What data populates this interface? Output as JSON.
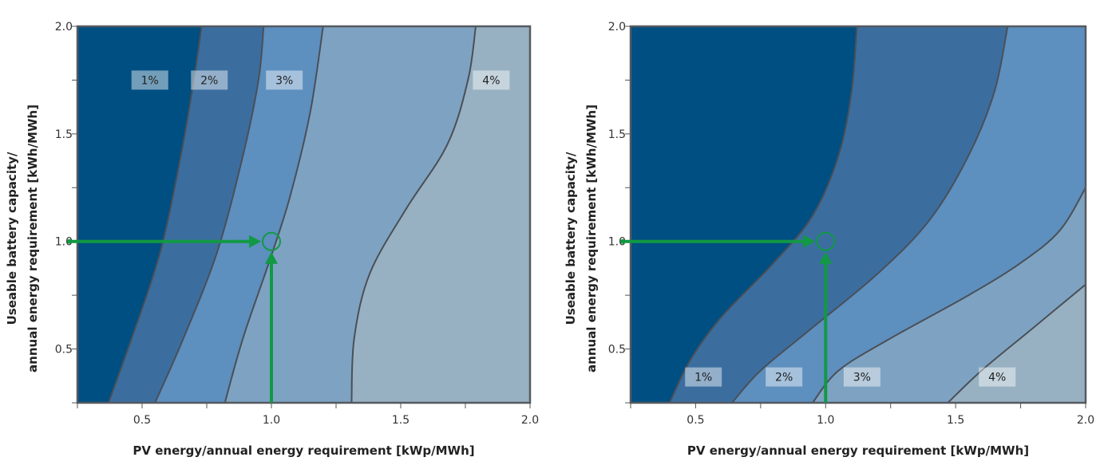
{
  "chart_data": [
    {
      "type": "area",
      "subtype": "contour",
      "title": "",
      "xlabel": "PV energy/annual energy requirement [kWp/MWh]",
      "ylabel_lines": [
        "Useable battery capacity/",
        "annual energy requirement [kWh/MWh]"
      ],
      "xlim": [
        0.25,
        2.0
      ],
      "ylim": [
        0.25,
        2.0
      ],
      "xticks": [
        "0.5",
        "1.0",
        "1.5",
        "2.0"
      ],
      "yticks": [
        "0.5",
        "1.0",
        "1.5",
        "2.0"
      ],
      "xtick_values": [
        0.5,
        1.0,
        1.5,
        2.0
      ],
      "ytick_values": [
        0.5,
        1.0,
        1.5,
        2.0
      ],
      "grid": false,
      "band_colors": [
        "#004f82",
        "#3b6e9f",
        "#5d8fbf",
        "#7ea3c2",
        "#97b1c2"
      ],
      "contours": [
        {
          "label": "1%",
          "label_at": [
            0.53,
            1.75
          ],
          "points": [
            [
              0.37,
              0.25
            ],
            [
              0.46,
              0.55
            ],
            [
              0.57,
              0.95
            ],
            [
              0.65,
              1.4
            ],
            [
              0.7,
              1.75
            ],
            [
              0.73,
              2.0
            ]
          ]
        },
        {
          "label": "2%",
          "label_at": [
            0.76,
            1.75
          ],
          "points": [
            [
              0.55,
              0.25
            ],
            [
              0.66,
              0.55
            ],
            [
              0.79,
              0.95
            ],
            [
              0.89,
              1.4
            ],
            [
              0.95,
              1.75
            ],
            [
              0.97,
              2.0
            ]
          ]
        },
        {
          "label": "3%",
          "label_at": [
            1.05,
            1.75
          ],
          "points": [
            [
              0.82,
              0.25
            ],
            [
              0.89,
              0.55
            ],
            [
              0.99,
              0.9
            ],
            [
              1.07,
              1.2
            ],
            [
              1.15,
              1.6
            ],
            [
              1.2,
              2.0
            ]
          ]
        },
        {
          "label": "4%",
          "label_at": [
            1.85,
            1.75
          ],
          "points": [
            [
              1.31,
              0.25
            ],
            [
              1.32,
              0.55
            ],
            [
              1.38,
              0.85
            ],
            [
              1.52,
              1.15
            ],
            [
              1.68,
              1.45
            ],
            [
              1.76,
              1.75
            ],
            [
              1.79,
              2.0
            ]
          ]
        }
      ],
      "marker": {
        "point": [
          1.0,
          1.0
        ],
        "arrow_from_x": 0.25,
        "arrow_from_y": 0.25,
        "color": "#119944"
      }
    },
    {
      "type": "area",
      "subtype": "contour",
      "title": "",
      "xlabel": "PV energy/annual energy requirement [kWp/MWh]",
      "ylabel_lines": [
        "Useable battery capacity/",
        "annual energy requirement [kWh/MWh]"
      ],
      "xlim": [
        0.25,
        2.0
      ],
      "ylim": [
        0.25,
        2.0
      ],
      "xticks": [
        "0.5",
        "1.0",
        "1.5",
        "2.0"
      ],
      "yticks": [
        "0.5",
        "1.0",
        "1.5",
        "2.0"
      ],
      "xtick_values": [
        0.5,
        1.0,
        1.5,
        2.0
      ],
      "ytick_values": [
        0.5,
        1.0,
        1.5,
        2.0
      ],
      "grid": false,
      "band_colors": [
        "#004f82",
        "#3b6e9f",
        "#5d8fbf",
        "#7ea3c2",
        "#97b1c2"
      ],
      "contours": [
        {
          "label": "1%",
          "label_at": [
            0.53,
            0.37
          ],
          "points": [
            [
              0.4,
              0.25
            ],
            [
              0.48,
              0.45
            ],
            [
              0.6,
              0.65
            ],
            [
              0.8,
              0.9
            ],
            [
              0.95,
              1.12
            ],
            [
              1.05,
              1.4
            ],
            [
              1.1,
              1.7
            ],
            [
              1.12,
              2.0
            ]
          ]
        },
        {
          "label": "2%",
          "label_at": [
            0.84,
            0.37
          ],
          "points": [
            [
              0.64,
              0.25
            ],
            [
              0.75,
              0.4
            ],
            [
              0.95,
              0.6
            ],
            [
              1.2,
              0.85
            ],
            [
              1.4,
              1.1
            ],
            [
              1.55,
              1.4
            ],
            [
              1.65,
              1.7
            ],
            [
              1.7,
              2.0
            ]
          ]
        },
        {
          "label": "3%",
          "label_at": [
            1.14,
            0.37
          ],
          "points": [
            [
              0.95,
              0.25
            ],
            [
              1.05,
              0.4
            ],
            [
              1.25,
              0.55
            ],
            [
              1.55,
              0.75
            ],
            [
              1.75,
              0.9
            ],
            [
              1.9,
              1.05
            ],
            [
              2.0,
              1.25
            ]
          ]
        },
        {
          "label": "4%",
          "label_at": [
            1.66,
            0.37
          ],
          "points": [
            [
              1.47,
              0.25
            ],
            [
              1.6,
              0.4
            ],
            [
              1.8,
              0.6
            ],
            [
              2.0,
              0.8
            ]
          ]
        }
      ],
      "marker": {
        "point": [
          1.0,
          1.0
        ],
        "arrow_from_x": 0.25,
        "arrow_from_y": 0.25,
        "color": "#119944"
      }
    }
  ]
}
